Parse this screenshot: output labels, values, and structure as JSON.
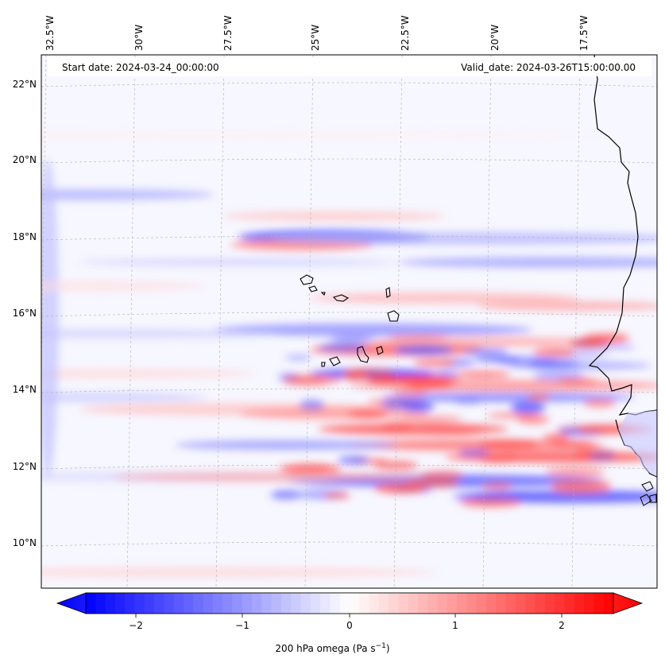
{
  "map": {
    "start_date": "Start date: 2024-03-24_00:00:00",
    "valid_date": "Valid_date: 2024-03-26T15:00:00.00",
    "lon_labels": [
      "32.5°W",
      "30°W",
      "27.5°W",
      "25°W",
      "22.5°W",
      "20°W",
      "17.5°W"
    ],
    "lat_labels": [
      "22°N",
      "20°N",
      "18°N",
      "16°N",
      "14°N",
      "12°N",
      "10°N"
    ],
    "colorbar": {
      "ticks": [
        "−2",
        "−1",
        "0",
        "1",
        "2"
      ],
      "label": "200 hPa omega (Pa s",
      "label_sup": "−1",
      "label_end": ")",
      "min": -2.7,
      "max": 2.7,
      "colors": {
        "neg": "#0000ff",
        "zero": "#ffffff",
        "pos": "#ff0000"
      }
    }
  }
}
